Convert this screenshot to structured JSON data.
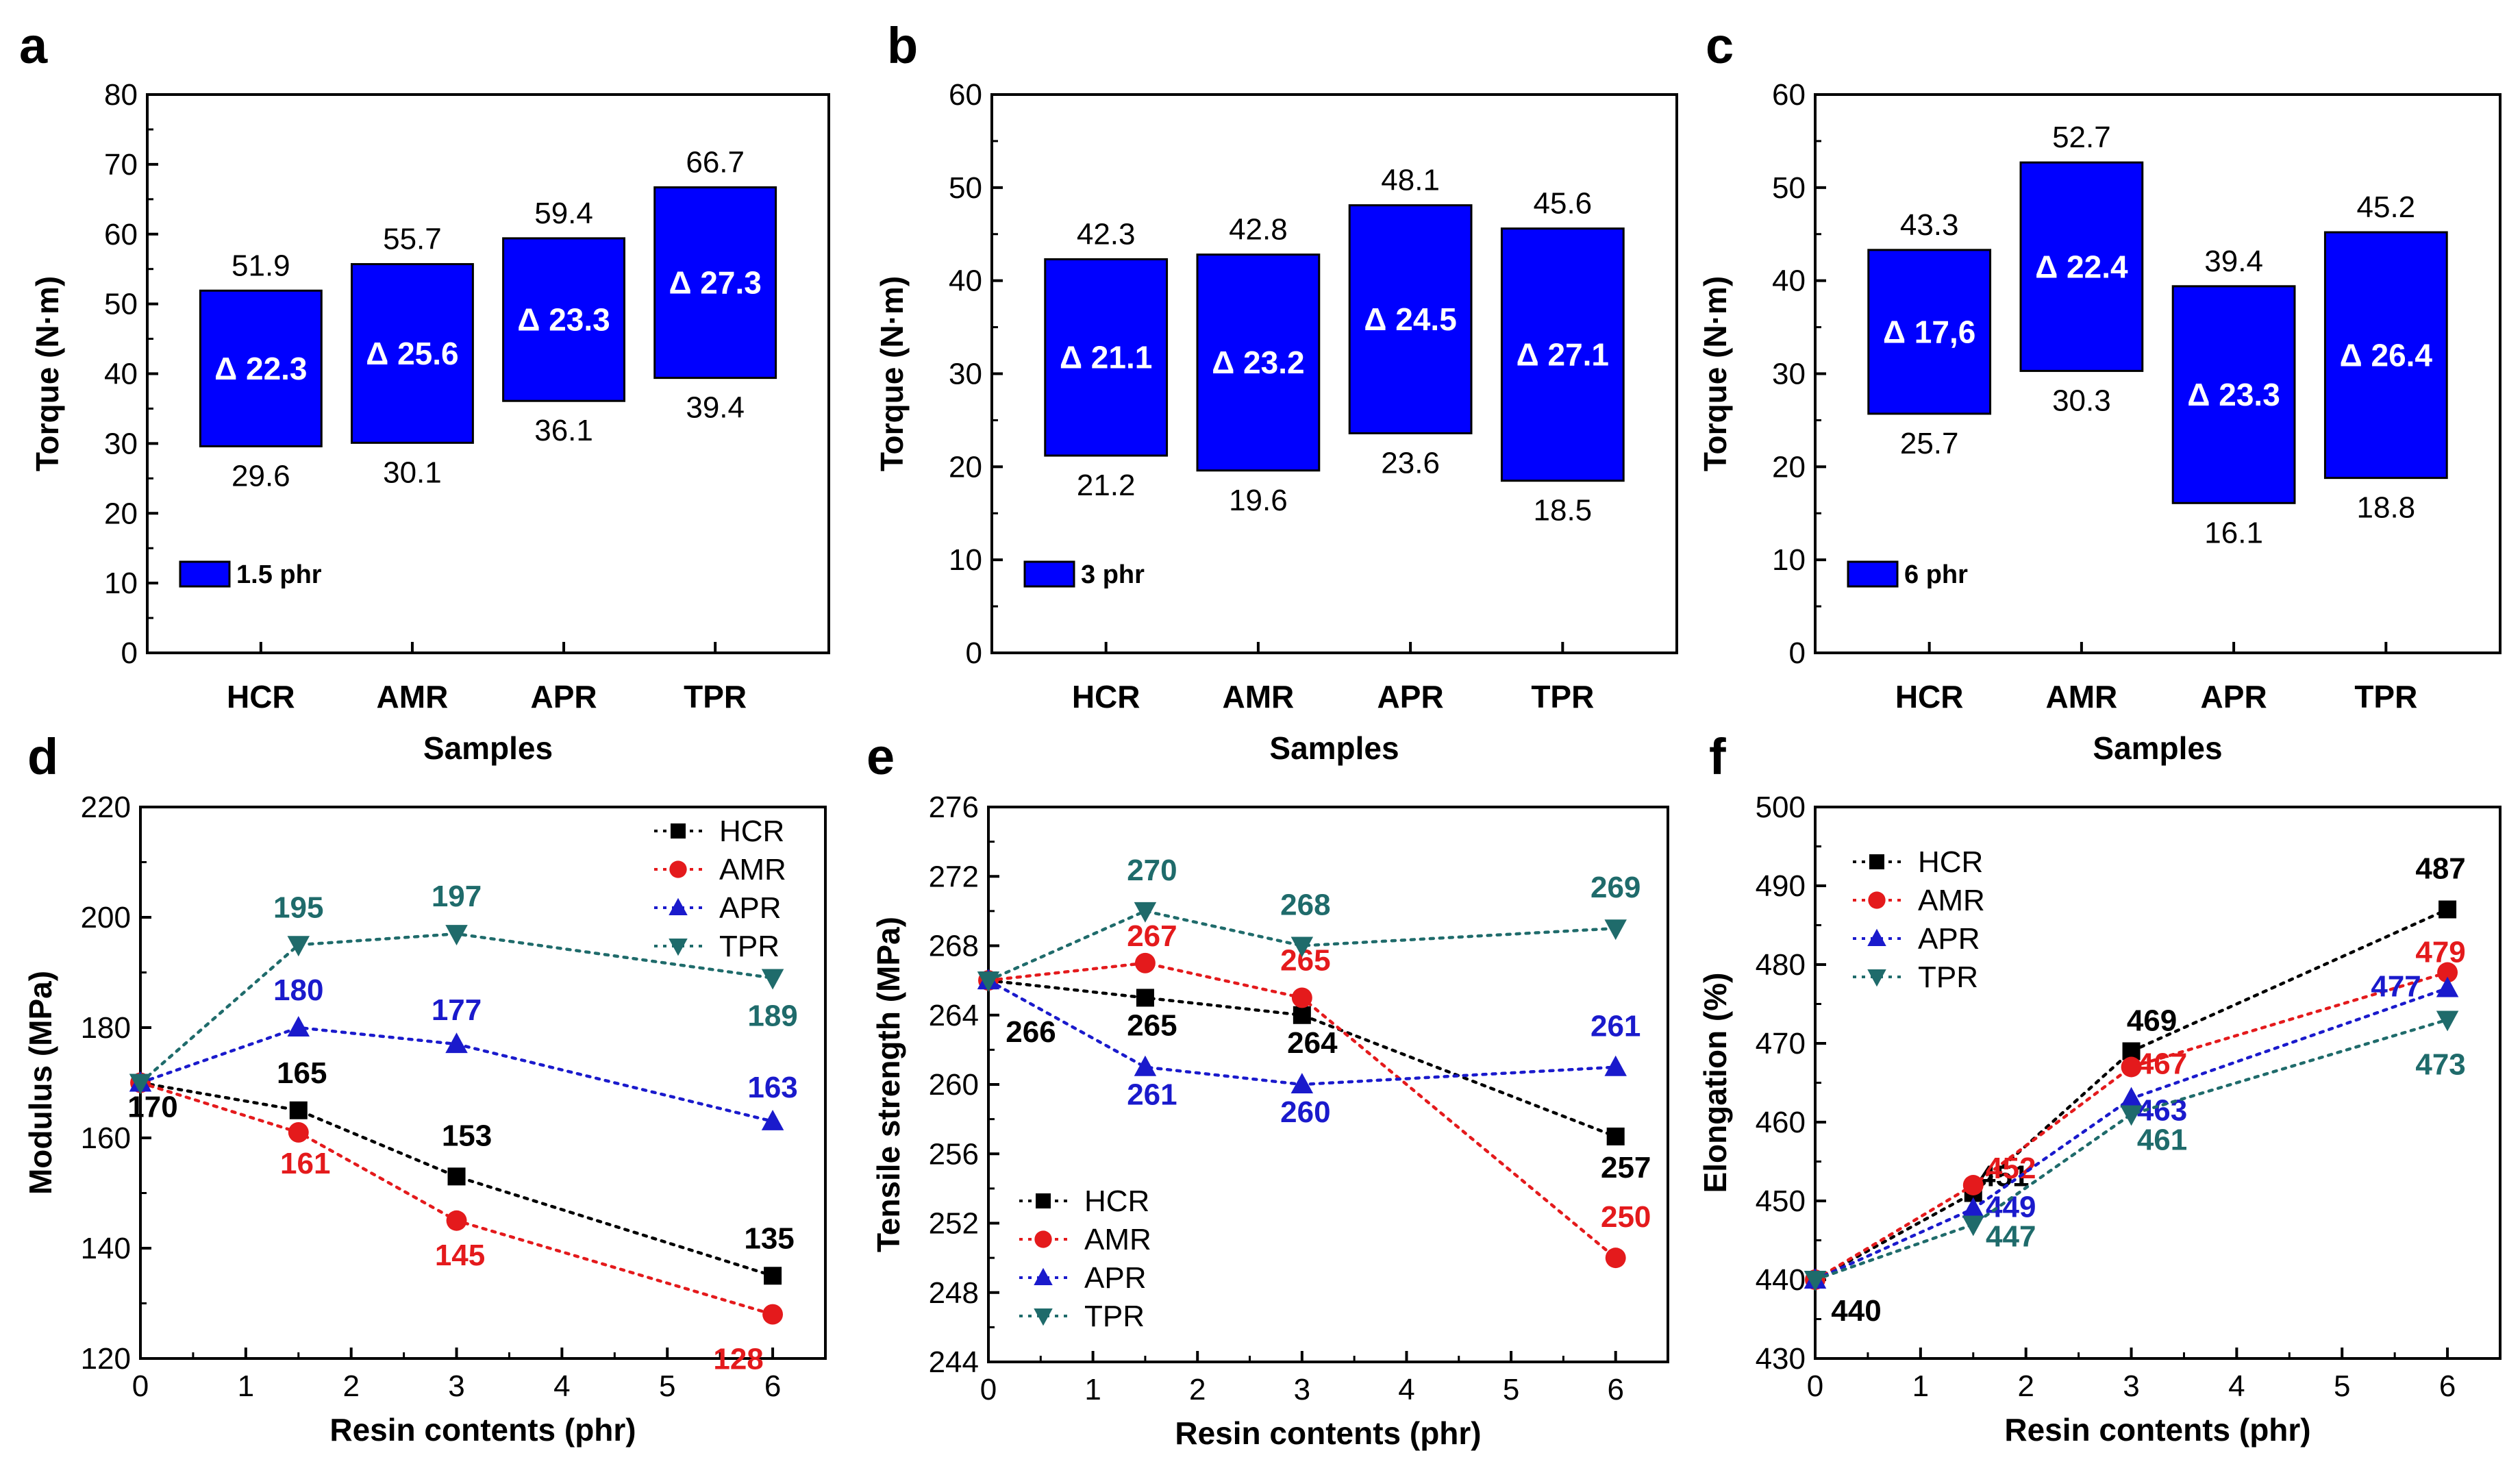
{
  "chart_data": [
    {
      "panel": "a",
      "type": "floating-bar",
      "xlabel": "Samples",
      "ylabel": "Torque (N·m)",
      "ylim": [
        0,
        80
      ],
      "yticks": [
        "0",
        "10",
        "20",
        "30",
        "40",
        "50",
        "60",
        "70",
        "80"
      ],
      "legend": "1.5 phr",
      "color": "#0000ff",
      "categories": [
        "HCR",
        "AMR",
        "APR",
        "TPR"
      ],
      "low": [
        29.6,
        30.1,
        36.1,
        39.4
      ],
      "high": [
        51.9,
        55.7,
        59.4,
        66.7
      ],
      "low_labels": [
        "29.6",
        "30.1",
        "36.1",
        "39.4"
      ],
      "high_labels": [
        "51.9",
        "55.7",
        "59.4",
        "66.7"
      ],
      "delta_labels": [
        "Δ 22.3",
        "Δ 25.6",
        "Δ 23.3",
        "Δ 27.3"
      ]
    },
    {
      "panel": "b",
      "type": "floating-bar",
      "xlabel": "Samples",
      "ylabel": "Torque (N·m)",
      "ylim": [
        0,
        60
      ],
      "yticks": [
        "0",
        "10",
        "20",
        "30",
        "40",
        "50",
        "60"
      ],
      "legend": "3 phr",
      "color": "#0000ff",
      "categories": [
        "HCR",
        "AMR",
        "APR",
        "TPR"
      ],
      "low": [
        21.2,
        19.6,
        23.6,
        18.5
      ],
      "high": [
        42.3,
        42.8,
        48.1,
        45.6
      ],
      "low_labels": [
        "21.2",
        "19.6",
        "23.6",
        "18.5"
      ],
      "high_labels": [
        "42.3",
        "42.8",
        "48.1",
        "45.6"
      ],
      "delta_labels": [
        "Δ 21.1",
        "Δ 23.2",
        "Δ 24.5",
        "Δ 27.1"
      ]
    },
    {
      "panel": "c",
      "type": "floating-bar",
      "xlabel": "Samples",
      "ylabel": "Torque (N·m)",
      "ylim": [
        0,
        60
      ],
      "yticks": [
        "0",
        "10",
        "20",
        "30",
        "40",
        "50",
        "60"
      ],
      "legend": "6 phr",
      "color": "#0000ff",
      "categories": [
        "HCR",
        "AMR",
        "APR",
        "TPR"
      ],
      "low": [
        25.7,
        30.3,
        16.1,
        18.8
      ],
      "high": [
        43.3,
        52.7,
        39.4,
        45.2
      ],
      "low_labels": [
        "25.7",
        "30.3",
        "16.1",
        "18.8"
      ],
      "high_labels": [
        "43.3",
        "52.7",
        "39.4",
        "45.2"
      ],
      "delta_labels": [
        "Δ 17,6",
        "Δ 22.4",
        "Δ 23.3",
        "Δ 26.4"
      ]
    },
    {
      "panel": "d",
      "type": "line",
      "xlabel": "Resin contents (phr)",
      "ylabel": "Modulus (MPa)",
      "xlim": [
        0,
        6.5
      ],
      "ylim": [
        120,
        220
      ],
      "xticks": [
        "0",
        "1",
        "2",
        "3",
        "4",
        "5",
        "6"
      ],
      "yticks": [
        "120",
        "140",
        "160",
        "180",
        "200",
        "220"
      ],
      "x": [
        0,
        1.5,
        3,
        6
      ],
      "legend_position": "top-right",
      "series": [
        {
          "name": "HCR",
          "color": "#000000",
          "marker": "square",
          "values": [
            170,
            165,
            153,
            135
          ],
          "labels": [
            "170",
            "165",
            "153",
            "135"
          ]
        },
        {
          "name": "AMR",
          "color": "#e41a1c",
          "marker": "circle",
          "values": [
            170,
            161,
            145,
            128
          ],
          "labels": [
            "",
            "161",
            "145",
            "128"
          ]
        },
        {
          "name": "APR",
          "color": "#1a1acc",
          "marker": "triangle-up",
          "values": [
            170,
            180,
            177,
            163
          ],
          "labels": [
            "",
            "180",
            "177",
            "163"
          ]
        },
        {
          "name": "TPR",
          "color": "#1f6b6b",
          "marker": "triangle-down",
          "values": [
            170,
            195,
            197,
            189
          ],
          "labels": [
            "",
            "195",
            "197",
            "189"
          ]
        }
      ]
    },
    {
      "panel": "e",
      "type": "line",
      "xlabel": "Resin contents (phr)",
      "ylabel": "Tensile strength (MPa)",
      "xlim": [
        0,
        6.5
      ],
      "ylim": [
        244,
        276
      ],
      "xticks": [
        "0",
        "1",
        "2",
        "3",
        "4",
        "5",
        "6"
      ],
      "yticks": [
        "244",
        "248",
        "252",
        "256",
        "260",
        "264",
        "268",
        "272",
        "276"
      ],
      "x": [
        0,
        1.5,
        3,
        6
      ],
      "legend_position": "bottom-left",
      "series": [
        {
          "name": "HCR",
          "color": "#000000",
          "marker": "square",
          "values": [
            266,
            265,
            264,
            257
          ],
          "labels": [
            "266",
            "265",
            "264",
            "257"
          ]
        },
        {
          "name": "AMR",
          "color": "#e41a1c",
          "marker": "circle",
          "values": [
            266,
            267,
            265,
            250
          ],
          "labels": [
            "",
            "267",
            "265",
            "250"
          ]
        },
        {
          "name": "APR",
          "color": "#1a1acc",
          "marker": "triangle-up",
          "values": [
            266,
            261,
            260,
            261
          ],
          "labels": [
            "",
            "261",
            "260",
            "261"
          ]
        },
        {
          "name": "TPR",
          "color": "#1f6b6b",
          "marker": "triangle-down",
          "values": [
            266,
            270,
            268,
            269
          ],
          "labels": [
            "",
            "270",
            "268",
            "269"
          ]
        }
      ]
    },
    {
      "panel": "f",
      "type": "line",
      "xlabel": "Resin contents (phr)",
      "ylabel": "Elongation (%)",
      "xlim": [
        0,
        6.5
      ],
      "ylim": [
        430,
        500
      ],
      "xticks": [
        "0",
        "1",
        "2",
        "3",
        "4",
        "5",
        "6"
      ],
      "yticks": [
        "430",
        "440",
        "450",
        "460",
        "470",
        "480",
        "490",
        "500"
      ],
      "x": [
        0,
        1.5,
        3,
        6
      ],
      "legend_position": "top-left",
      "series": [
        {
          "name": "HCR",
          "color": "#000000",
          "marker": "square",
          "values": [
            440,
            451,
            469,
            487
          ],
          "labels": [
            "440",
            "451",
            "469",
            "487"
          ]
        },
        {
          "name": "AMR",
          "color": "#e41a1c",
          "marker": "circle",
          "values": [
            440,
            452,
            467,
            479
          ],
          "labels": [
            "",
            "452",
            "467",
            "479"
          ]
        },
        {
          "name": "APR",
          "color": "#1a1acc",
          "marker": "triangle-up",
          "values": [
            440,
            449,
            463,
            477
          ],
          "labels": [
            "",
            "449",
            "463",
            "477"
          ]
        },
        {
          "name": "TPR",
          "color": "#1f6b6b",
          "marker": "triangle-down",
          "values": [
            440,
            447,
            461,
            473
          ],
          "labels": [
            "",
            "447",
            "461",
            "473"
          ]
        }
      ]
    }
  ]
}
